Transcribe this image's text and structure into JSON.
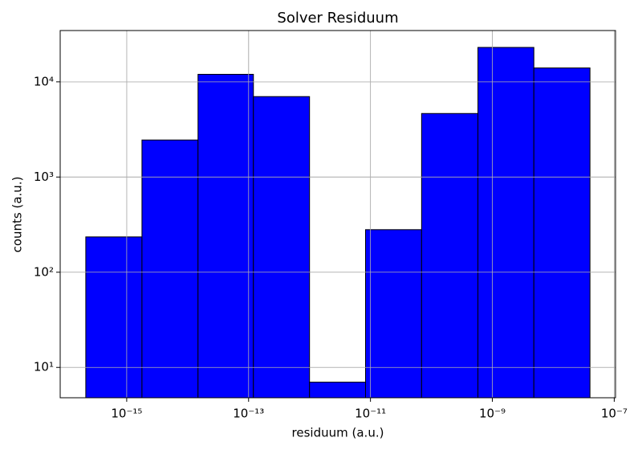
{
  "chart_data": {
    "type": "histogram",
    "title": "Solver Residuum",
    "xlabel": "residuum (a.u.)",
    "ylabel": "counts (a.u.)",
    "bins": [
      2.13e-16,
      1.78e-15,
      1.48e-14,
      1.2e-13,
      1e-12,
      8.3e-12,
      6.9e-11,
      5.8e-10,
      4.8e-09,
      4e-08
    ],
    "values": [
      235,
      2450,
      12000,
      7000,
      7,
      280,
      4650,
      23000,
      14000
    ],
    "color": "#0000ff",
    "edgecolor": "#000000",
    "xscale": "log",
    "yscale": "log",
    "xlim": [
      8.1e-17,
      1.05e-07
    ],
    "ylim": [
      4.8,
      34600
    ],
    "xticks": [
      {
        "value": 1e-15,
        "label": "10⁻¹⁵"
      },
      {
        "value": 1e-13,
        "label": "10⁻¹³"
      },
      {
        "value": 1e-11,
        "label": "10⁻¹¹"
      },
      {
        "value": 1e-09,
        "label": "10⁻⁹"
      },
      {
        "value": 1e-07,
        "label": "10⁻⁷"
      }
    ],
    "yticks": [
      {
        "value": 10,
        "label": "10¹"
      },
      {
        "value": 100,
        "label": "10²"
      },
      {
        "value": 1000,
        "label": "10³"
      },
      {
        "value": 10000,
        "label": "10⁴"
      }
    ],
    "grid": true
  }
}
